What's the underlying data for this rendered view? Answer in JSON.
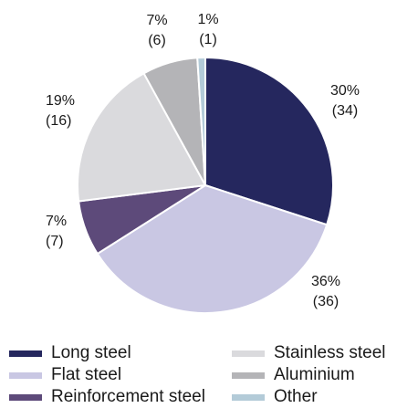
{
  "chart_data": {
    "type": "pie",
    "slices": [
      {
        "name": "Long steel",
        "percent": 30,
        "value": 34,
        "pct_label": "30%",
        "value_label": "(34)",
        "color": "#25275e"
      },
      {
        "name": "Flat steel",
        "percent": 36,
        "value": 36,
        "pct_label": "36%",
        "value_label": "(36)",
        "color": "#c9c7e3"
      },
      {
        "name": "Reinforcement steel",
        "percent": 7,
        "value": 7,
        "pct_label": "7%",
        "value_label": "(7)",
        "color": "#5d4a7a"
      },
      {
        "name": "Stainless steel",
        "percent": 19,
        "value": 16,
        "pct_label": "19%",
        "value_label": "(16)",
        "color": "#dadadd"
      },
      {
        "name": "Aluminium",
        "percent": 7,
        "value": 6,
        "pct_label": "7%",
        "value_label": "(6)",
        "color": "#b4b4b7"
      },
      {
        "name": "Other",
        "percent": 1,
        "value": 1,
        "pct_label": "1%",
        "value_label": "(1)",
        "color": "#b3cbd8"
      }
    ],
    "legend_placement": "bottom"
  }
}
